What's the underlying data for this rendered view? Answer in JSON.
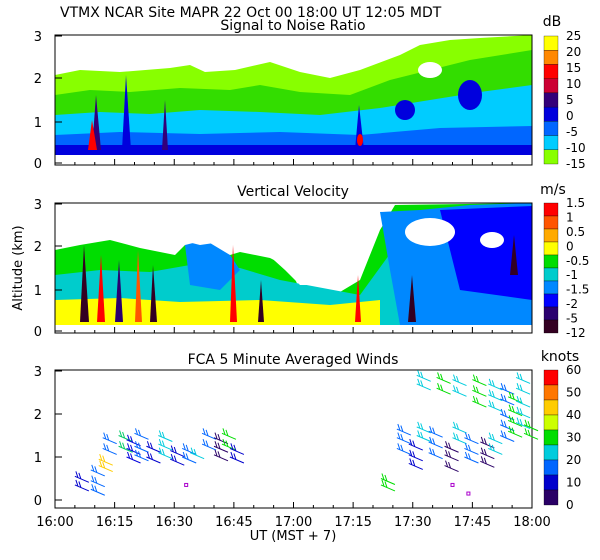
{
  "header": {
    "title": "VTMX  NCAR Site  MAPR 22 Oct 00   18:00 UT  12:05  MDT"
  },
  "chart_data": [
    {
      "id": "snr",
      "type": "heatmap",
      "title": "Signal to Noise Ratio",
      "units": "dB",
      "ylim": [
        0,
        3
      ],
      "yticks": [
        "0",
        "1",
        "2",
        "3"
      ],
      "colorbar": {
        "labels": [
          "25",
          "20",
          "15",
          "10",
          "5",
          "0",
          "-5",
          "-10",
          "-15"
        ],
        "colors": [
          "#ffff00",
          "#ff8800",
          "#ff0000",
          "#cc0033",
          "#33007a",
          "#0000dd",
          "#0066ff",
          "#00ccff",
          "#88ff00"
        ]
      }
    },
    {
      "id": "vv",
      "type": "heatmap",
      "title": "Vertical Velocity",
      "units": "m/s",
      "ylabel": "Altitude (km)",
      "ylim": [
        0,
        3
      ],
      "yticks": [
        "0",
        "1",
        "2",
        "3"
      ],
      "colorbar": {
        "labels": [
          "1.5",
          "1",
          "0.5",
          "0",
          "-0.5",
          "-1",
          "-1.5",
          "-2",
          "-5",
          "-12"
        ],
        "colors": [
          "#ff0000",
          "#ff5500",
          "#ffaa00",
          "#ffff00",
          "#00dd00",
          "#00cccc",
          "#0088ff",
          "#0000ff",
          "#2a006f",
          "#330022"
        ]
      }
    },
    {
      "id": "winds",
      "type": "scatter",
      "title": "FCA 5 Minute Averaged Winds",
      "units": "knots",
      "ylim": [
        0,
        3
      ],
      "yticks": [
        "0",
        "1",
        "2",
        "3"
      ],
      "xlim": [
        0,
        120
      ],
      "xticks": [
        "16:00",
        "16:15",
        "16:30",
        "16:45",
        "17:00",
        "17:15",
        "17:30",
        "17:45",
        "18:00"
      ],
      "xlabel": "UT  (MST + 7)",
      "colorbar": {
        "labels": [
          "60",
          "50",
          "40",
          "30",
          "20",
          "10",
          "0"
        ],
        "colors": [
          "#ff0000",
          "#ff7700",
          "#ffcc00",
          "#ccff00",
          "#00dd00",
          "#00ccdd",
          "#0066ff",
          "#0000cc",
          "#2a0066"
        ]
      },
      "profiles": [
        {
          "t": 5,
          "color": "#0000cc",
          "h": [
            0.35,
            0.55
          ]
        },
        {
          "t": 9,
          "color": "#0066ff",
          "h": [
            0.25,
            0.45,
            0.7
          ]
        },
        {
          "t": 11,
          "color": "#ffcc00",
          "h": [
            0.8,
            0.95
          ]
        },
        {
          "t": 12,
          "color": "#0066ff",
          "h": [
            1.2,
            1.45
          ]
        },
        {
          "t": 16,
          "color": "#00cc66",
          "h": [
            1.25,
            1.5
          ]
        },
        {
          "t": 18,
          "color": "#0000dd",
          "h": [
            1.0,
            1.2,
            1.4
          ]
        },
        {
          "t": 20,
          "color": "#0066ff",
          "h": [
            1.05,
            1.25,
            1.55
          ]
        },
        {
          "t": 23,
          "color": "#0000cc",
          "h": [
            1.0,
            1.25
          ]
        },
        {
          "t": 26,
          "color": "#00ccdd",
          "h": [
            1.1,
            1.3,
            1.5
          ]
        },
        {
          "t": 29,
          "color": "#0000cc",
          "h": [
            0.95,
            1.15
          ]
        },
        {
          "t": 32,
          "color": "#0066ff",
          "h": [
            1.0,
            1.2
          ]
        },
        {
          "t": 34,
          "color": "#00ccdd",
          "h": [
            1.1
          ]
        },
        {
          "t": 37,
          "color": "#0066ff",
          "h": [
            1.3,
            1.55
          ]
        },
        {
          "t": 40,
          "color": "#2a0066",
          "h": [
            1.05,
            1.25,
            1.45
          ]
        },
        {
          "t": 42,
          "color": "#00dd00",
          "h": [
            1.3,
            1.55
          ]
        },
        {
          "t": 44,
          "color": "#0000cc",
          "h": [
            1.0,
            1.2
          ]
        },
        {
          "t": 82,
          "color": "#00dd00",
          "h": [
            0.35,
            0.5
          ]
        },
        {
          "t": 86,
          "color": "#0066ff",
          "h": [
            1.2,
            1.45,
            1.65
          ]
        },
        {
          "t": 89,
          "color": "#0000cc",
          "h": [
            0.85,
            1.05,
            1.3
          ]
        },
        {
          "t": 91,
          "color": "#00ccdd",
          "h": [
            1.5,
            1.7,
            2.7,
            2.9
          ]
        },
        {
          "t": 94,
          "color": "#0066ff",
          "h": [
            1.1,
            1.35,
            1.6
          ]
        },
        {
          "t": 96,
          "color": "#00dd00",
          "h": [
            2.6,
            2.85
          ]
        },
        {
          "t": 98,
          "color": "#2a0066",
          "h": [
            0.8,
            1.05,
            1.25
          ]
        },
        {
          "t": 100,
          "color": "#00ccdd",
          "h": [
            1.45,
            1.7,
            2.55,
            2.8
          ]
        },
        {
          "t": 103,
          "color": "#0066ff",
          "h": [
            1.0,
            1.2,
            1.45
          ]
        },
        {
          "t": 105,
          "color": "#00dd00",
          "h": [
            2.3,
            2.55,
            2.8
          ]
        },
        {
          "t": 107,
          "color": "#2a0066",
          "h": [
            0.9,
            1.1,
            1.35
          ]
        },
        {
          "t": 109,
          "color": "#00ccdd",
          "h": [
            1.2,
            1.45,
            2.2,
            2.45,
            2.7
          ]
        },
        {
          "t": 112,
          "color": "#0066ff",
          "h": [
            1.5,
            1.75,
            2.0,
            2.35,
            2.6
          ]
        },
        {
          "t": 114,
          "color": "#00dd00",
          "h": [
            1.6,
            1.85,
            2.1,
            2.4
          ]
        },
        {
          "t": 116,
          "color": "#00ccdd",
          "h": [
            1.8,
            2.05,
            2.3,
            2.6,
            2.85
          ]
        },
        {
          "t": 118,
          "color": "#00dd00",
          "h": [
            1.55,
            1.75
          ]
        }
      ],
      "markers": [
        {
          "t": 33,
          "h": 0.35,
          "color": "#aa00cc"
        },
        {
          "t": 100,
          "h": 0.35,
          "color": "#aa00cc"
        },
        {
          "t": 104,
          "h": 0.15,
          "color": "#aa00cc"
        }
      ]
    }
  ]
}
